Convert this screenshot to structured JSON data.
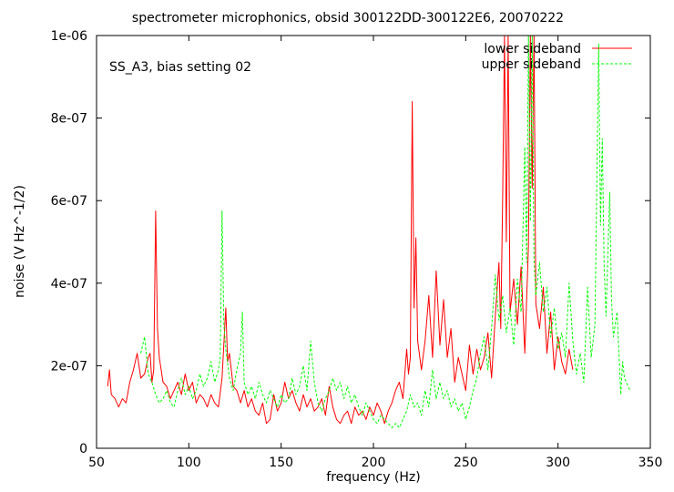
{
  "chart_data": {
    "type": "line",
    "title": "spectrometer microphonics, obsid 300122DD-300122E6, 20070222",
    "annotation": "SS_A3, bias setting 02",
    "xlabel": "frequency (Hz)",
    "ylabel": "noise (V Hz^-1/2)",
    "xlim": [
      50,
      350
    ],
    "ylim": [
      0,
      1e-06
    ],
    "x_ticks": [
      50,
      100,
      150,
      200,
      250,
      300,
      350
    ],
    "x_tick_labels": [
      "50",
      "100",
      "150",
      "200",
      "250",
      "300",
      "350"
    ],
    "y_ticks": [
      0,
      2e-07,
      4e-07,
      6e-07,
      8e-07,
      1e-06
    ],
    "y_tick_labels": [
      "0",
      "2e-07",
      "4e-07",
      "6e-07",
      "8e-07",
      "1e-06"
    ],
    "grid": false,
    "legend_placement": "top-right",
    "series": [
      {
        "name": "lower sideband",
        "color": "#ff0000",
        "dash": "solid",
        "points": [
          [
            56,
            1.5e-07
          ],
          [
            57,
            1.9e-07
          ],
          [
            58,
            1.3e-07
          ],
          [
            60,
            1.2e-07
          ],
          [
            62,
            1e-07
          ],
          [
            64,
            1.2e-07
          ],
          [
            66,
            1.1e-07
          ],
          [
            68,
            1.6e-07
          ],
          [
            70,
            1.9e-07
          ],
          [
            72,
            2.3e-07
          ],
          [
            74,
            1.7e-07
          ],
          [
            76,
            1.8e-07
          ],
          [
            78,
            2.2e-07
          ],
          [
            79,
            2.3e-07
          ],
          [
            80,
            1.6e-07
          ],
          [
            81,
            1.9e-07
          ],
          [
            82,
            5.75e-07
          ],
          [
            83,
            2.9e-07
          ],
          [
            84,
            2.2e-07
          ],
          [
            86,
            1.6e-07
          ],
          [
            88,
            1.5e-07
          ],
          [
            90,
            1.2e-07
          ],
          [
            92,
            1.4e-07
          ],
          [
            94,
            1.6e-07
          ],
          [
            96,
            1.3e-07
          ],
          [
            98,
            1.8e-07
          ],
          [
            100,
            1.4e-07
          ],
          [
            102,
            1.6e-07
          ],
          [
            104,
            1.1e-07
          ],
          [
            106,
            1.3e-07
          ],
          [
            108,
            1.2e-07
          ],
          [
            110,
            1e-07
          ],
          [
            112,
            1.3e-07
          ],
          [
            114,
            1.1e-07
          ],
          [
            116,
            1e-07
          ],
          [
            118,
            1.7e-07
          ],
          [
            120,
            3.4e-07
          ],
          [
            121,
            2.1e-07
          ],
          [
            122,
            2.3e-07
          ],
          [
            124,
            1.5e-07
          ],
          [
            126,
            1.4e-07
          ],
          [
            128,
            1.1e-07
          ],
          [
            130,
            1.4e-07
          ],
          [
            132,
            1e-07
          ],
          [
            134,
            1.2e-07
          ],
          [
            136,
            9e-08
          ],
          [
            138,
            8e-08
          ],
          [
            140,
            1.1e-07
          ],
          [
            142,
            6e-08
          ],
          [
            144,
            7e-08
          ],
          [
            146,
            1.3e-07
          ],
          [
            148,
            9e-08
          ],
          [
            150,
            1.1e-07
          ],
          [
            152,
            1.6e-07
          ],
          [
            154,
            1.2e-07
          ],
          [
            156,
            1.4e-07
          ],
          [
            158,
            1.1e-07
          ],
          [
            160,
            9e-08
          ],
          [
            162,
            1.3e-07
          ],
          [
            164,
            1e-07
          ],
          [
            166,
            1.2e-07
          ],
          [
            168,
            9e-08
          ],
          [
            170,
            1e-07
          ],
          [
            172,
            1.2e-07
          ],
          [
            174,
            8e-08
          ],
          [
            176,
            1.5e-07
          ],
          [
            178,
            1e-07
          ],
          [
            180,
            7e-08
          ],
          [
            182,
            6e-08
          ],
          [
            184,
            8e-08
          ],
          [
            186,
            9e-08
          ],
          [
            188,
            6e-08
          ],
          [
            190,
            1e-07
          ],
          [
            192,
            8e-08
          ],
          [
            194,
            9e-08
          ],
          [
            196,
            7e-08
          ],
          [
            198,
            1e-07
          ],
          [
            200,
            8e-08
          ],
          [
            202,
            1.1e-07
          ],
          [
            204,
            9e-08
          ],
          [
            206,
            6e-08
          ],
          [
            208,
            9e-08
          ],
          [
            210,
            1.1e-07
          ],
          [
            212,
            1.4e-07
          ],
          [
            214,
            1.6e-07
          ],
          [
            216,
            1.2e-07
          ],
          [
            218,
            2.4e-07
          ],
          [
            219,
            1.8e-07
          ],
          [
            220,
            2.2e-07
          ],
          [
            221,
            8.4e-07
          ],
          [
            222,
            3.4e-07
          ],
          [
            223,
            5.1e-07
          ],
          [
            224,
            2.6e-07
          ],
          [
            226,
            1.9e-07
          ],
          [
            228,
            2.6e-07
          ],
          [
            230,
            3.7e-07
          ],
          [
            232,
            2.2e-07
          ],
          [
            234,
            4.3e-07
          ],
          [
            236,
            2.5e-07
          ],
          [
            238,
            3.6e-07
          ],
          [
            240,
            2.2e-07
          ],
          [
            242,
            2.9e-07
          ],
          [
            244,
            1.6e-07
          ],
          [
            246,
            2.2e-07
          ],
          [
            248,
            1.8e-07
          ],
          [
            250,
            1.4e-07
          ],
          [
            252,
            2.5e-07
          ],
          [
            254,
            1.8e-07
          ],
          [
            256,
            2.4e-07
          ],
          [
            258,
            1.9e-07
          ],
          [
            260,
            2.2e-07
          ],
          [
            262,
            2.8e-07
          ],
          [
            264,
            1.7e-07
          ],
          [
            266,
            3.2e-07
          ],
          [
            268,
            4.5e-07
          ],
          [
            269,
            2.9e-07
          ],
          [
            270,
            6.1e-07
          ],
          [
            271,
            1e-06
          ],
          [
            272,
            5e-07
          ],
          [
            273,
            1e-06
          ],
          [
            274,
            3.3e-07
          ],
          [
            276,
            4.1e-07
          ],
          [
            278,
            3e-07
          ],
          [
            280,
            4.4e-07
          ],
          [
            282,
            2.3e-07
          ],
          [
            284,
            4.9e-07
          ],
          [
            285,
            1e-06
          ],
          [
            286,
            6.3e-07
          ],
          [
            287,
            1e-06
          ],
          [
            288,
            3.5e-07
          ],
          [
            290,
            2.9e-07
          ],
          [
            292,
            3.9e-07
          ],
          [
            294,
            2.3e-07
          ],
          [
            296,
            3.3e-07
          ],
          [
            298,
            1.9e-07
          ],
          [
            300,
            2.7e-07
          ],
          [
            302,
            2.1e-07
          ],
          [
            304,
            1.8e-07
          ],
          [
            306,
            2.4e-07
          ],
          [
            308,
            1.9e-07
          ]
        ]
      },
      {
        "name": "upper sideband",
        "color": "#00ff00",
        "dash": "dashed",
        "points": [
          [
            74,
            2.3e-07
          ],
          [
            76,
            2.7e-07
          ],
          [
            78,
            1.8e-07
          ],
          [
            80,
            1.6e-07
          ],
          [
            82,
            1.3e-07
          ],
          [
            84,
            1.1e-07
          ],
          [
            86,
            1.2e-07
          ],
          [
            88,
            1.4e-07
          ],
          [
            90,
            1.1e-07
          ],
          [
            92,
            1e-07
          ],
          [
            94,
            1.4e-07
          ],
          [
            96,
            1.7e-07
          ],
          [
            98,
            1.3e-07
          ],
          [
            100,
            1.5e-07
          ],
          [
            102,
            1.2e-07
          ],
          [
            104,
            1.4e-07
          ],
          [
            106,
            1.8e-07
          ],
          [
            108,
            1.5e-07
          ],
          [
            110,
            1.7e-07
          ],
          [
            112,
            2.1e-07
          ],
          [
            114,
            1.6e-07
          ],
          [
            116,
            1.9e-07
          ],
          [
            117,
            2.2e-07
          ],
          [
            118,
            5.75e-07
          ],
          [
            119,
            3e-07
          ],
          [
            120,
            2.4e-07
          ],
          [
            122,
            1.7e-07
          ],
          [
            124,
            1.4e-07
          ],
          [
            126,
            1.9e-07
          ],
          [
            128,
            2.3e-07
          ],
          [
            129,
            3.3e-07
          ],
          [
            130,
            1.6e-07
          ],
          [
            132,
            1.3e-07
          ],
          [
            134,
            1.5e-07
          ],
          [
            136,
            1.2e-07
          ],
          [
            138,
            1.6e-07
          ],
          [
            140,
            1.3e-07
          ],
          [
            142,
            1.1e-07
          ],
          [
            144,
            1.4e-07
          ],
          [
            146,
            1.2e-07
          ],
          [
            148,
            1e-07
          ],
          [
            150,
            1.3e-07
          ],
          [
            152,
            1.1e-07
          ],
          [
            154,
            1.2e-07
          ],
          [
            156,
            1.7e-07
          ],
          [
            158,
            1.3e-07
          ],
          [
            160,
            1.5e-07
          ],
          [
            162,
            2e-07
          ],
          [
            164,
            1.4e-07
          ],
          [
            166,
            2.6e-07
          ],
          [
            168,
            1.6e-07
          ],
          [
            170,
            1.1e-07
          ],
          [
            172,
            9e-08
          ],
          [
            174,
            1.2e-07
          ],
          [
            176,
            1.4e-07
          ],
          [
            178,
            1.7e-07
          ],
          [
            180,
            1.4e-07
          ],
          [
            182,
            1.6e-07
          ],
          [
            184,
            1.2e-07
          ],
          [
            186,
            1.5e-07
          ],
          [
            188,
            1.1e-07
          ],
          [
            190,
            1.3e-07
          ],
          [
            192,
            1e-07
          ],
          [
            194,
            8e-08
          ],
          [
            196,
            1.1e-07
          ],
          [
            198,
            9e-08
          ],
          [
            200,
            7e-08
          ],
          [
            202,
            6e-08
          ],
          [
            204,
            8e-08
          ],
          [
            206,
            7e-08
          ],
          [
            208,
            6e-08
          ],
          [
            210,
            5e-08
          ],
          [
            212,
            6e-08
          ],
          [
            214,
            5e-08
          ],
          [
            216,
            7e-08
          ],
          [
            218,
            9e-08
          ],
          [
            220,
            1.3e-07
          ],
          [
            222,
            1e-07
          ],
          [
            224,
            1.1e-07
          ],
          [
            226,
            8e-08
          ],
          [
            228,
            1.4e-07
          ],
          [
            230,
            1e-07
          ],
          [
            232,
            1.9e-07
          ],
          [
            234,
            1.2e-07
          ],
          [
            236,
            1.6e-07
          ],
          [
            238,
            1.2e-07
          ],
          [
            240,
            1.4e-07
          ],
          [
            242,
            1e-07
          ],
          [
            244,
            1.2e-07
          ],
          [
            246,
            9e-08
          ],
          [
            248,
            1.1e-07
          ],
          [
            250,
            7e-08
          ],
          [
            252,
            1e-07
          ],
          [
            254,
            1.4e-07
          ],
          [
            256,
            1.7e-07
          ],
          [
            258,
            2.3e-07
          ],
          [
            260,
            2.7e-07
          ],
          [
            262,
            1.9e-07
          ],
          [
            264,
            2.9e-07
          ],
          [
            266,
            4.2e-07
          ],
          [
            268,
            3.1e-07
          ],
          [
            270,
            3.7e-07
          ],
          [
            272,
            2.8e-07
          ],
          [
            274,
            3.4e-07
          ],
          [
            276,
            2.5e-07
          ],
          [
            278,
            4.1e-07
          ],
          [
            280,
            3.3e-07
          ],
          [
            282,
            7.3e-07
          ],
          [
            283,
            4.5e-07
          ],
          [
            284,
            1e-06
          ],
          [
            285,
            5.5e-07
          ],
          [
            286,
            1e-06
          ],
          [
            287,
            4.6e-07
          ],
          [
            288,
            3.7e-07
          ],
          [
            290,
            4.5e-07
          ],
          [
            292,
            3.3e-07
          ],
          [
            294,
            3.9e-07
          ],
          [
            296,
            2.7e-07
          ],
          [
            298,
            3.4e-07
          ],
          [
            300,
            2.4e-07
          ],
          [
            302,
            2.8e-07
          ],
          [
            304,
            2.2e-07
          ],
          [
            306,
            4e-07
          ],
          [
            308,
            2.6e-07
          ],
          [
            310,
            1.8e-07
          ],
          [
            312,
            2.3e-07
          ],
          [
            314,
            1.6e-07
          ],
          [
            316,
            3.9e-07
          ],
          [
            318,
            2.2e-07
          ],
          [
            320,
            3e-07
          ],
          [
            322,
            9.8e-07
          ],
          [
            323,
            5.4e-07
          ],
          [
            324,
            7.5e-07
          ],
          [
            325,
            4.4e-07
          ],
          [
            326,
            3.2e-07
          ],
          [
            328,
            6.2e-07
          ],
          [
            329,
            3.6e-07
          ],
          [
            330,
            2.7e-07
          ],
          [
            332,
            3.3e-07
          ],
          [
            334,
            1.3e-07
          ],
          [
            335,
            2.1e-07
          ],
          [
            336,
            1.7e-07
          ],
          [
            338,
            1.5e-07
          ],
          [
            339,
            1.4e-07
          ]
        ]
      }
    ]
  }
}
